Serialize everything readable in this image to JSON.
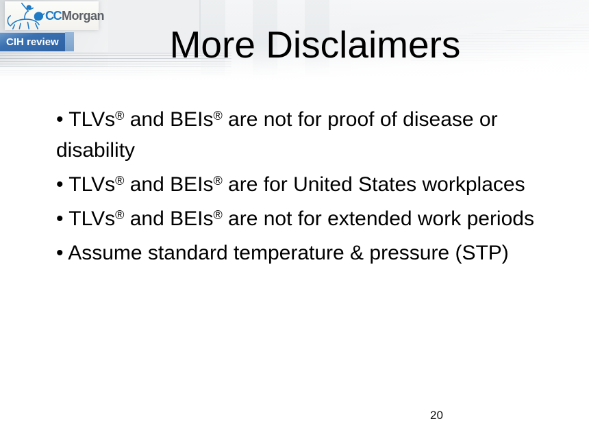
{
  "brand": {
    "cc": "CC",
    "name": "Morgan"
  },
  "badge": {
    "label": "CIH review"
  },
  "title": "More Disclaimers",
  "bullets": {
    "marker": "•",
    "items": [
      {
        "segments": [
          {
            "t": "TLVs"
          },
          {
            "t": "®",
            "sup": true
          },
          {
            "t": " and BEIs"
          },
          {
            "t": "®",
            "sup": true
          },
          {
            "t": " are not for proof of disease or disability"
          }
        ]
      },
      {
        "segments": [
          {
            "t": "TLVs"
          },
          {
            "t": "®",
            "sup": true
          },
          {
            "t": " and BEIs"
          },
          {
            "t": "®",
            "sup": true
          },
          {
            "t": " are for United States workplaces"
          }
        ]
      },
      {
        "segments": [
          {
            "t": "TLVs"
          },
          {
            "t": "®",
            "sup": true
          },
          {
            "t": " and BEIs"
          },
          {
            "t": "®",
            "sup": true
          },
          {
            "t": " are not for extended work periods"
          }
        ]
      },
      {
        "segments": [
          {
            "t": "Assume standard temperature & pressure (STP)"
          }
        ]
      }
    ]
  },
  "page_number": "20",
  "icons": {
    "logo": "knight-lion"
  },
  "colors": {
    "logo_blue": "#1e7ac4",
    "logo_gray": "#5c6167",
    "badge_blue_top": "#6d9ac9",
    "badge_blue_mid": "#3a70b0",
    "badge_blue_bottom": "#2d61a4",
    "badge_strip": "#8fb2d8",
    "text_color": "#000000"
  }
}
